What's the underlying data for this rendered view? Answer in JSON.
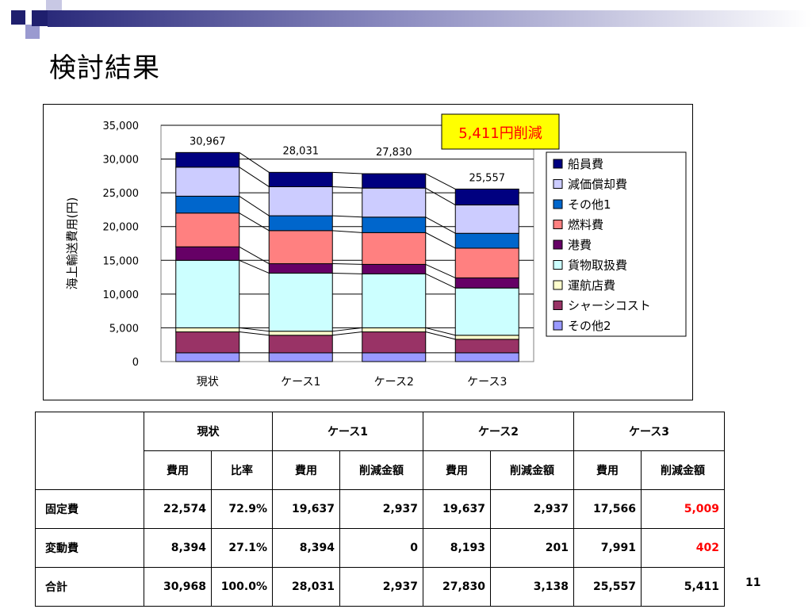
{
  "slide": {
    "title": "検討結果",
    "page_number": "11"
  },
  "theme": {
    "deco_dark": "#1f1f6e",
    "deco_light": "#9a9ad0",
    "red_text": "#ff0000"
  },
  "chart_data": {
    "type": "bar",
    "stacked": true,
    "categories": [
      "現状",
      "ケース1",
      "ケース2",
      "ケース3"
    ],
    "ylabel": "海上輸送費用(円)",
    "ylim": [
      0,
      35000
    ],
    "yticks": [
      0,
      5000,
      10000,
      15000,
      20000,
      25000,
      30000,
      35000
    ],
    "ytick_labels": [
      "0",
      "5,000",
      "10,000",
      "15,000",
      "20,000",
      "25,000",
      "30,000",
      "35,000"
    ],
    "totals": [
      30967,
      28031,
      27830,
      25557
    ],
    "total_labels": [
      "30,967",
      "28,031",
      "27,830",
      "25,557"
    ],
    "callout": "5,411円削減",
    "legend_position": "right",
    "series": [
      {
        "name": "その他2",
        "color": "#9999ff",
        "values": [
          1300,
          1300,
          1300,
          1300
        ]
      },
      {
        "name": "シャーシコスト",
        "color": "#993366",
        "values": [
          3100,
          2600,
          3100,
          2000
        ]
      },
      {
        "name": "運航店費",
        "color": "#ffffcc",
        "values": [
          600,
          600,
          600,
          600
        ]
      },
      {
        "name": "貨物取扱費",
        "color": "#ccffff",
        "values": [
          10000,
          8600,
          8000,
          7000
        ]
      },
      {
        "name": "港費",
        "color": "#660066",
        "values": [
          2000,
          1400,
          1400,
          1500
        ]
      },
      {
        "name": "燃料費",
        "color": "#ff8080",
        "values": [
          5000,
          4900,
          4700,
          4400
        ]
      },
      {
        "name": "その他1",
        "color": "#0066cc",
        "values": [
          2500,
          2200,
          2300,
          2200
        ]
      },
      {
        "name": "減価償却費",
        "color": "#ccccff",
        "values": [
          4300,
          4300,
          4300,
          4200
        ]
      },
      {
        "name": "船員費",
        "color": "#000080",
        "values": [
          2167,
          2131,
          2130,
          2357
        ]
      }
    ]
  },
  "table": {
    "group_headers": [
      "現状",
      "ケース1",
      "ケース2",
      "ケース3"
    ],
    "sub_headers": [
      "費用",
      "比率",
      "費用",
      "削減金額",
      "費用",
      "削減金額",
      "費用",
      "削減金額"
    ],
    "rows": [
      {
        "label": "固定費",
        "cells": [
          "22,574",
          "72.9%",
          "19,637",
          "2,937",
          "19,637",
          "2,937",
          "17,566",
          "5,009"
        ]
      },
      {
        "label": "変動費",
        "cells": [
          "8,394",
          "27.1%",
          "8,394",
          "0",
          "8,193",
          "201",
          "7,991",
          "402"
        ]
      },
      {
        "label": "合計",
        "cells": [
          "30,968",
          "100.0%",
          "28,031",
          "2,937",
          "27,830",
          "3,138",
          "25,557",
          "5,411"
        ]
      }
    ]
  }
}
